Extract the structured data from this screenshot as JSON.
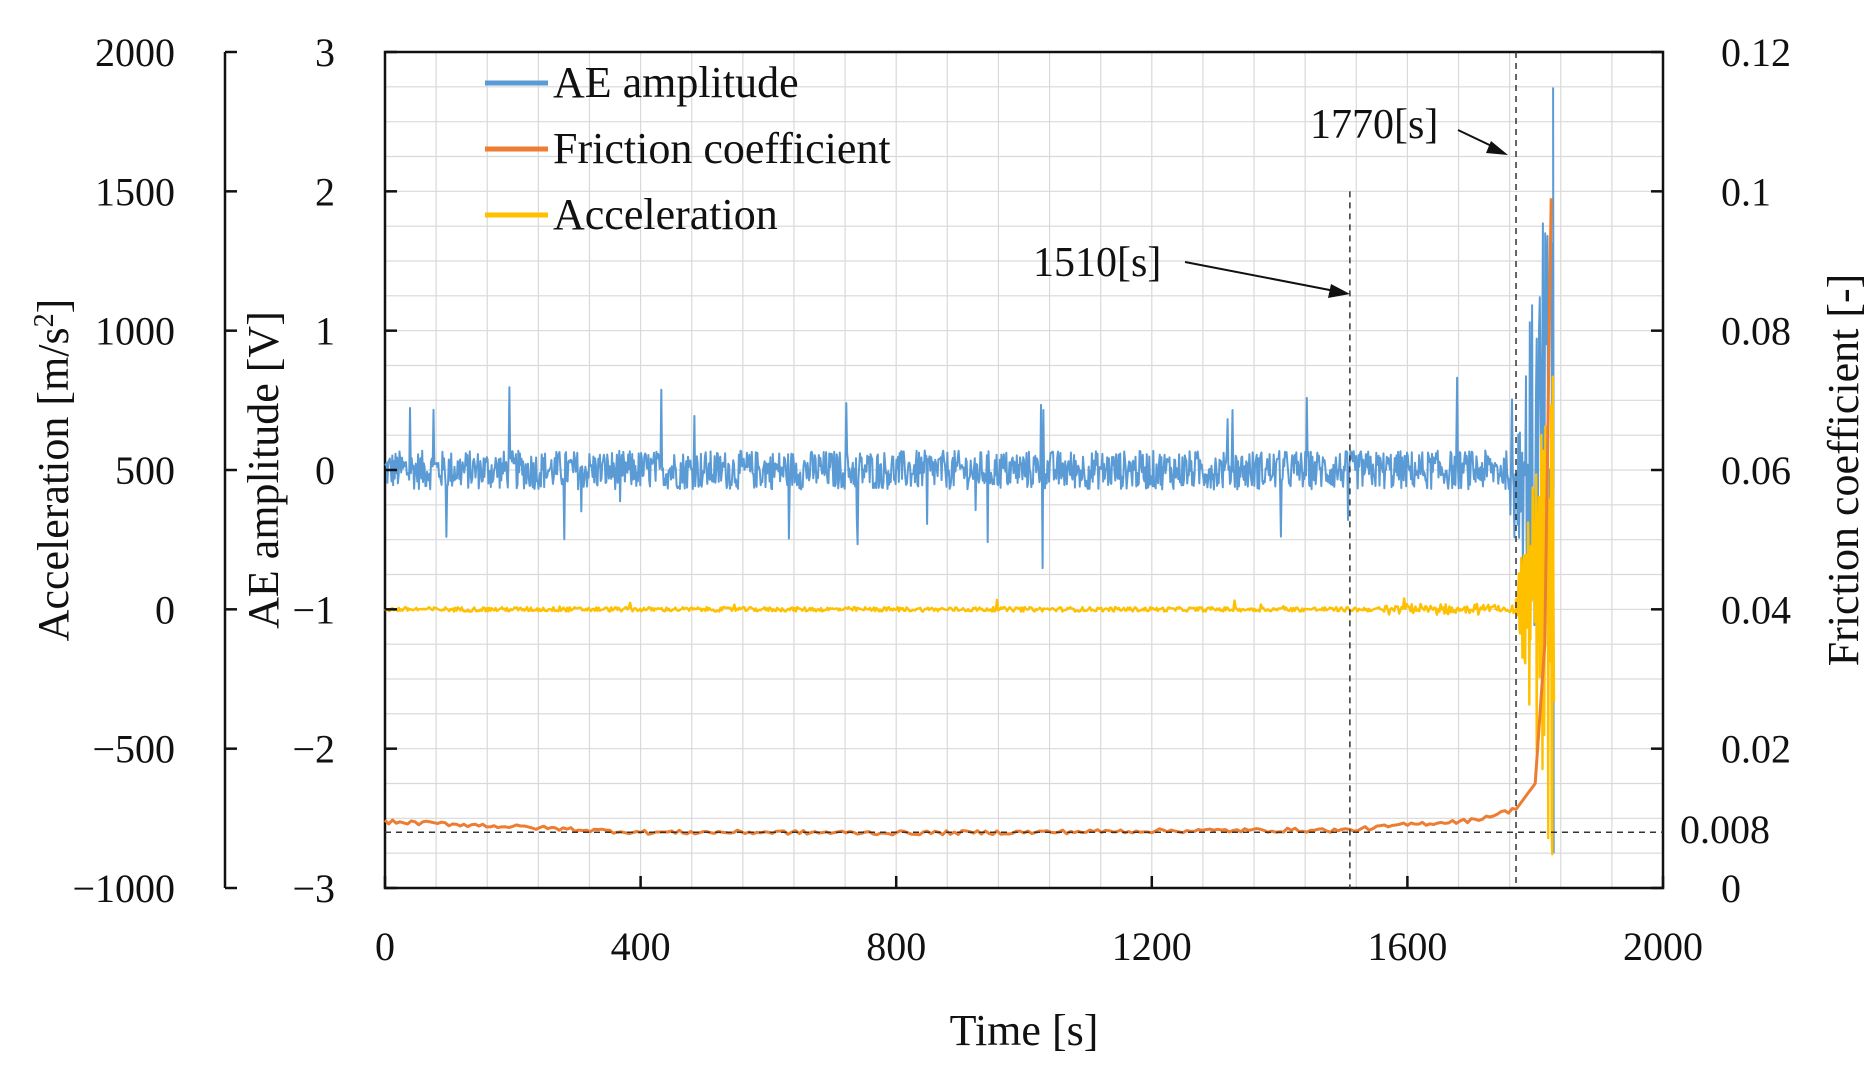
{
  "chart_data": {
    "type": "line",
    "x": {
      "label": "Time",
      "unit": "[s]",
      "range": [
        0,
        2000
      ],
      "ticks": [
        "0",
        "400",
        "800",
        "1200",
        "1600",
        "2000"
      ],
      "tick_values": [
        0,
        400,
        800,
        1200,
        1600,
        2000
      ]
    },
    "axes": {
      "acceleration": {
        "label": "Acceleration",
        "unit_prefix": "[m/s",
        "unit_sup": "2",
        "unit_suffix": "]",
        "range": [
          -1000,
          2000
        ],
        "ticks": [
          "2000",
          "1500",
          "1000",
          "500",
          "0",
          "−500",
          "−1000"
        ],
        "tick_values": [
          2000,
          1500,
          1000,
          500,
          0,
          -500,
          -1000
        ]
      },
      "ae": {
        "label": "AE amplitude [V]",
        "range": [
          -3,
          3
        ],
        "ticks": [
          "3",
          "2",
          "1",
          "0",
          "−1",
          "−2",
          "−3"
        ],
        "tick_values": [
          3,
          2,
          1,
          0,
          -1,
          -2,
          -3
        ]
      },
      "friction": {
        "label": "Friction coefficient  [-]",
        "range": [
          0,
          0.12
        ],
        "ticks": [
          "0.12",
          "0.1",
          "0.08",
          "0.06",
          "0.04",
          "0.02",
          "0"
        ],
        "tick_values": [
          0.12,
          0.1,
          0.08,
          0.06,
          0.04,
          0.02,
          0
        ]
      }
    },
    "series": [
      {
        "name": "AE amplitude",
        "axis": "ae",
        "color": "#5b9bd5",
        "baseline": 0,
        "noise_amplitude": 0.14,
        "final_peak": 2.74,
        "final_trough": -2.75,
        "end_time": 1830
      },
      {
        "name": "Friction coefficient",
        "axis": "friction",
        "color": "#ed7d31",
        "points": [
          [
            0,
            0.0095
          ],
          [
            100,
            0.0092
          ],
          [
            200,
            0.0088
          ],
          [
            400,
            0.008
          ],
          [
            600,
            0.008
          ],
          [
            800,
            0.0079
          ],
          [
            1000,
            0.008
          ],
          [
            1200,
            0.0082
          ],
          [
            1400,
            0.0083
          ],
          [
            1510,
            0.0083
          ],
          [
            1600,
            0.0091
          ],
          [
            1700,
            0.0097
          ],
          [
            1770,
            0.0113
          ],
          [
            1800,
            0.015
          ],
          [
            1815,
            0.035
          ],
          [
            1822,
            0.08
          ],
          [
            1825,
            0.099
          ]
        ]
      },
      {
        "name": "Acceleration",
        "axis": "acceleration",
        "color": "#ffc000",
        "baseline": 0,
        "noise_amplitude": 8,
        "burst_start": 1770,
        "burst_amplitude": 900,
        "end_time": 1830
      }
    ],
    "annotations": [
      {
        "label": "1510[s]",
        "x": 1510
      },
      {
        "label": "1770[s]",
        "x": 1770
      },
      {
        "label": "0.008",
        "friction_value": 0.008
      }
    ],
    "legend": "top-left",
    "grid": true
  }
}
